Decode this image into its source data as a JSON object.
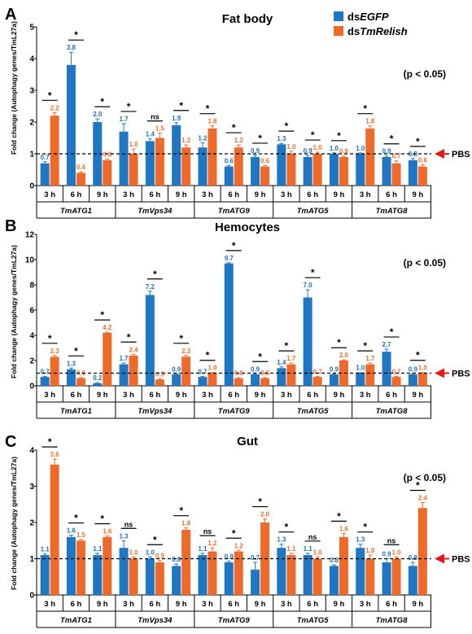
{
  "legend": {
    "items": [
      {
        "prefix": "ds",
        "name": "EGFP",
        "color": "#1f77c4"
      },
      {
        "prefix": "ds",
        "name": "TmRelish",
        "color": "#ed6a2a"
      }
    ]
  },
  "pbs_label": "PBS",
  "colors": {
    "egfp": "#1f77c4",
    "relish": "#ed6a2a",
    "egfp_label": "#1f6fb5",
    "relish_label": "#e8732f",
    "arrow": "#e01818"
  },
  "chart_data": [
    {
      "type": "bar",
      "panel": "A",
      "title": "Fat body",
      "ylabel": "Fold change (Autophagy genes/TmL27a)",
      "ylim": [
        0,
        5
      ],
      "yticks": [
        0,
        1,
        2,
        3,
        4,
        5
      ],
      "pvalue": "(p < 0.05)",
      "reference_line": 1,
      "genes": [
        "TmATG1",
        "TmVps34",
        "TmATG9",
        "TmATG5",
        "TmATG8"
      ],
      "timepoints": [
        "3 h",
        "6 h",
        "9 h"
      ],
      "series": [
        {
          "name": "dsEGFP",
          "values": [
            0.7,
            3.8,
            2.0,
            1.7,
            1.4,
            1.9,
            1.2,
            0.6,
            0.9,
            1.3,
            0.9,
            1.0,
            1.0,
            0.9,
            0.8
          ],
          "errors": [
            0.05,
            0.4,
            0.1,
            0.25,
            0.08,
            0.08,
            0.15,
            0.03,
            0.05,
            0.03,
            0.05,
            0.03,
            0.03,
            0.03,
            0.05
          ]
        },
        {
          "name": "dsTmRelish",
          "values": [
            2.2,
            0.4,
            0.8,
            1.0,
            1.5,
            1.2,
            1.8,
            1.2,
            0.6,
            1.0,
            1.0,
            0.9,
            1.8,
            0.7,
            0.6
          ],
          "errors": [
            0.1,
            0.03,
            0.03,
            0.15,
            0.15,
            0.08,
            0.08,
            0.08,
            0.03,
            0.08,
            0.05,
            0.03,
            0.08,
            0.08,
            0.05
          ]
        }
      ],
      "significance": [
        "*",
        "*",
        "*",
        "*",
        "ns",
        "*",
        "*",
        "*",
        "*",
        "*",
        "*",
        "*",
        "*",
        "*",
        "*"
      ]
    },
    {
      "type": "bar",
      "panel": "B",
      "title": "Hemocytes",
      "ylabel": "Fold change (Autophagy genes/TmL27a)",
      "ylim": [
        0,
        12
      ],
      "yticks": [
        0,
        2,
        4,
        6,
        8,
        10,
        12
      ],
      "pvalue": "(p < 0.05)",
      "reference_line": 1,
      "genes": [
        "TmATG1",
        "TmVps34",
        "TmATG9",
        "TmATG5",
        "TmATG8"
      ],
      "timepoints": [
        "3 h",
        "6 h",
        "9 h"
      ],
      "series": [
        {
          "name": "dsEGFP",
          "values": [
            0.7,
            1.3,
            0.2,
            1.7,
            7.2,
            0.9,
            0.7,
            9.7,
            0.9,
            1.4,
            7.0,
            0.9,
            1.0,
            2.7,
            0.9
          ],
          "errors": [
            0.05,
            0.1,
            0.05,
            0.1,
            0.3,
            0.05,
            0.05,
            0.05,
            0.05,
            0.1,
            0.6,
            0.05,
            0.05,
            0.2,
            0.05
          ]
        },
        {
          "name": "dsTmRelish",
          "values": [
            2.3,
            0.6,
            4.2,
            2.4,
            0.5,
            2.3,
            1.0,
            0.6,
            0.6,
            1.7,
            0.7,
            2.0,
            1.7,
            0.7,
            1.0
          ],
          "errors": [
            0.1,
            0.05,
            0.05,
            0.1,
            0.05,
            0.1,
            0.05,
            0.05,
            0.05,
            0.1,
            0.05,
            0.05,
            0.1,
            0.05,
            0.05
          ]
        }
      ],
      "significance": [
        "*",
        "*",
        "*",
        "*",
        "*",
        "*",
        "*",
        "*",
        "*",
        "*",
        "*",
        "*",
        "*",
        "*",
        "*"
      ]
    },
    {
      "type": "bar",
      "panel": "C",
      "title": "Gut",
      "ylabel": "Fold change (Autophagy genes/TmL27a)",
      "ylim": [
        0,
        4
      ],
      "yticks": [
        0,
        1,
        2,
        3,
        4
      ],
      "pvalue": "(p < 0.05)",
      "reference_line": 1,
      "genes": [
        "TmATG1",
        "TmVps34",
        "TmATG9",
        "TmATG5",
        "TmATG8"
      ],
      "timepoints": [
        "3 h",
        "6 h",
        "9 h"
      ],
      "series": [
        {
          "name": "dsEGFP",
          "values": [
            1.1,
            1.6,
            1.1,
            1.3,
            1.0,
            0.8,
            1.1,
            0.9,
            0.7,
            1.3,
            1.1,
            0.8,
            1.3,
            0.9,
            0.8
          ],
          "errors": [
            0.03,
            0.05,
            0.05,
            0.2,
            0.05,
            0.05,
            0.05,
            0.03,
            0.2,
            0.1,
            0.05,
            0.03,
            0.1,
            0.1,
            0.1
          ]
        },
        {
          "name": "dsTmRelish",
          "values": [
            3.6,
            1.5,
            1.6,
            1.0,
            0.9,
            1.8,
            1.2,
            1.2,
            2.0,
            1.1,
            1.0,
            1.6,
            1.0,
            1.0,
            2.4
          ],
          "errors": [
            0.15,
            0.03,
            0.03,
            0.05,
            0.05,
            0.05,
            0.1,
            0.03,
            0.1,
            0.05,
            0.05,
            0.1,
            0.1,
            0.05,
            0.15
          ]
        }
      ],
      "significance": [
        "*",
        "*",
        "*",
        "ns",
        "*",
        "*",
        "ns",
        "*",
        "*",
        "*",
        "ns",
        "*",
        "*",
        "ns",
        "*"
      ]
    }
  ]
}
